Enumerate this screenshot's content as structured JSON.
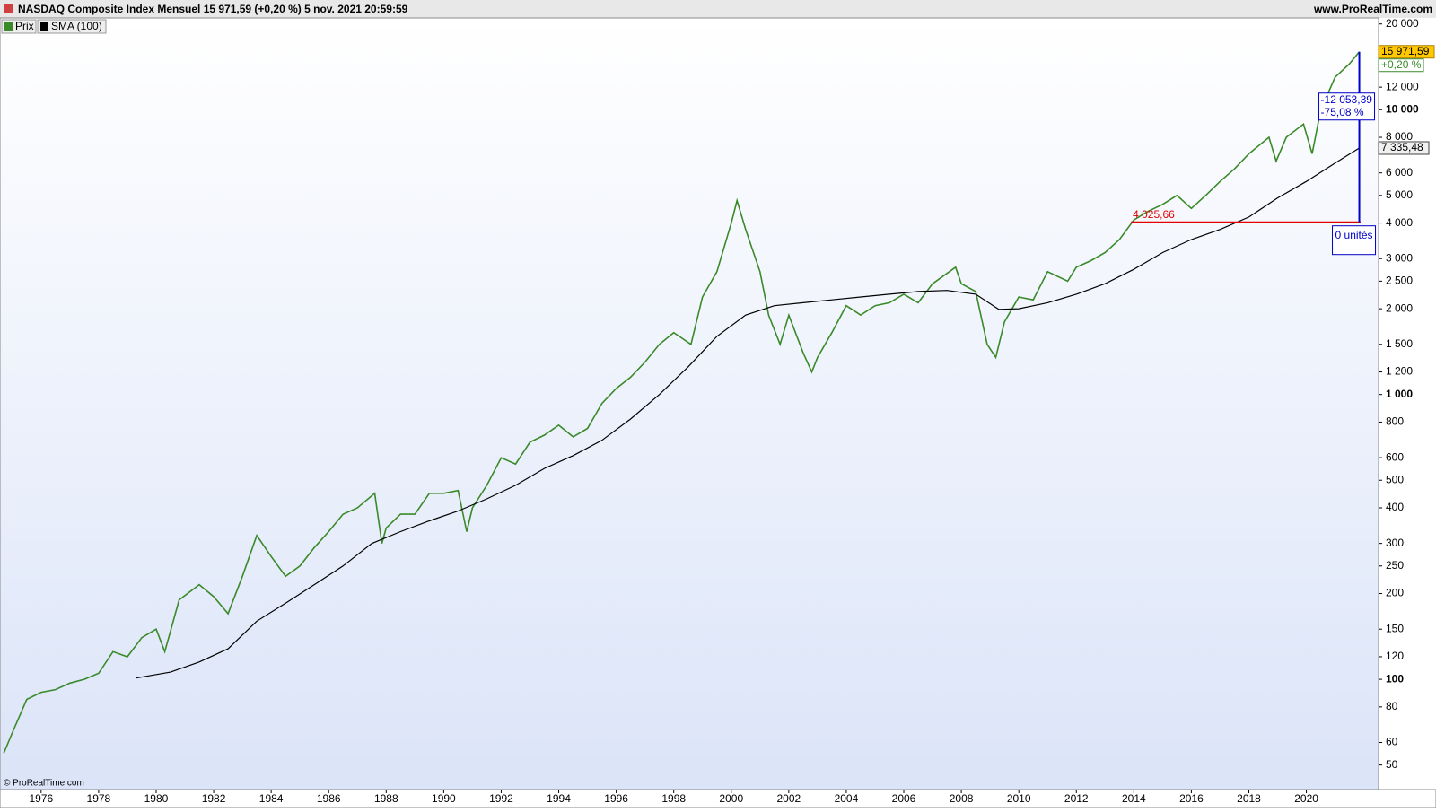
{
  "chart_data": {
    "type": "line",
    "title": "NASDAQ Composite Index Mensuel 15 971,59 (+0,20 %) 5 nov. 2021 20:59:59",
    "source": "www.ProRealTime.com",
    "copyright": "© ProRealTime.com",
    "log_scale": true,
    "xlim": [
      1974.57,
      2022.51
    ],
    "xticks": [
      1976,
      1978,
      1980,
      1982,
      1984,
      1986,
      1988,
      1990,
      1992,
      1994,
      1996,
      1998,
      2000,
      2002,
      2004,
      2006,
      2008,
      2010,
      2012,
      2014,
      2016,
      2018,
      2020
    ],
    "ylim": [
      41,
      21000
    ],
    "yticks": [
      {
        "value": 20000,
        "label": "20 000"
      },
      {
        "value": 12000,
        "label": "12 000"
      },
      {
        "value": 10000,
        "label": "10 000"
      },
      {
        "value": 8000,
        "label": "8 000"
      },
      {
        "value": 6000,
        "label": "6 000"
      },
      {
        "value": 5000,
        "label": "5 000"
      },
      {
        "value": 4000,
        "label": "4 000"
      },
      {
        "value": 3000,
        "label": "3 000"
      },
      {
        "value": 2500,
        "label": "2 500"
      },
      {
        "value": 2000,
        "label": "2 000"
      },
      {
        "value": 1500,
        "label": "1 500"
      },
      {
        "value": 1200,
        "label": "1 200"
      },
      {
        "value": 1000,
        "label": "1 000"
      },
      800,
      600,
      500,
      400,
      300,
      250,
      200,
      150,
      120,
      100,
      80,
      60,
      50
    ],
    "series": [
      {
        "name": "Prix",
        "color": "#3a8a2a",
        "x": [
          1974.7,
          1975.0,
          1975.5,
          1976.0,
          1976.5,
          1977.0,
          1977.5,
          1978.0,
          1978.5,
          1979.0,
          1979.5,
          1980.0,
          1980.3,
          1980.8,
          1981.5,
          1982.0,
          1982.5,
          1983.0,
          1983.5,
          1984.0,
          1984.5,
          1985.0,
          1985.5,
          1986.0,
          1986.5,
          1987.0,
          1987.6,
          1987.85,
          1988.0,
          1988.5,
          1989.0,
          1989.5,
          1990.0,
          1990.5,
          1990.8,
          1991.0,
          1991.5,
          1992.0,
          1992.5,
          1993.0,
          1993.5,
          1994.0,
          1994.5,
          1995.0,
          1995.5,
          1996.0,
          1996.5,
          1997.0,
          1997.5,
          1998.0,
          1998.6,
          1999.0,
          1999.5,
          2000.0,
          2000.2,
          2000.5,
          2001.0,
          2001.3,
          2001.7,
          2002.0,
          2002.5,
          2002.8,
          2003.0,
          2003.5,
          2004.0,
          2004.5,
          2005.0,
          2005.5,
          2006.0,
          2006.5,
          2007.0,
          2007.8,
          2008.0,
          2008.5,
          2008.9,
          2009.2,
          2009.5,
          2010.0,
          2010.5,
          2011.0,
          2011.7,
          2012.0,
          2012.5,
          2013.0,
          2013.5,
          2014.0,
          2014.5,
          2015.0,
          2015.5,
          2016.0,
          2016.5,
          2017.0,
          2017.5,
          2018.0,
          2018.7,
          2018.95,
          2019.3,
          2019.9,
          2020.2,
          2020.5,
          2021.0,
          2021.5,
          2021.84
        ],
        "values": [
          55,
          65,
          85,
          90,
          92,
          97,
          100,
          105,
          125,
          120,
          140,
          150,
          125,
          190,
          215,
          195,
          170,
          230,
          320,
          270,
          230,
          250,
          290,
          330,
          380,
          400,
          450,
          300,
          340,
          380,
          380,
          450,
          450,
          460,
          330,
          400,
          480,
          600,
          570,
          680,
          720,
          780,
          710,
          760,
          930,
          1050,
          1150,
          1300,
          1500,
          1650,
          1500,
          2200,
          2700,
          4000,
          4800,
          3800,
          2700,
          1900,
          1500,
          1900,
          1400,
          1200,
          1350,
          1650,
          2050,
          1900,
          2050,
          2100,
          2250,
          2100,
          2450,
          2800,
          2450,
          2300,
          1500,
          1350,
          1800,
          2200,
          2150,
          2700,
          2500,
          2800,
          2950,
          3150,
          3500,
          4100,
          4400,
          4650,
          5000,
          4500,
          5000,
          5600,
          6200,
          7000,
          8000,
          6600,
          8000,
          8900,
          7000,
          10000,
          13000,
          14500,
          15971.59
        ]
      },
      {
        "name": "SMA (100)",
        "color": "#000000",
        "x": [
          1979.3,
          1980.5,
          1981.5,
          1982.5,
          1983.5,
          1984.5,
          1985.5,
          1986.5,
          1987.5,
          1988.5,
          1989.5,
          1990.5,
          1991.5,
          1992.5,
          1993.5,
          1994.5,
          1995.5,
          1996.5,
          1997.5,
          1998.5,
          1999.5,
          2000.5,
          2001.5,
          2002.5,
          2003.5,
          2004.5,
          2005.5,
          2006.5,
          2007.5,
          2008.5,
          2009.3,
          2010.0,
          2011.0,
          2012.0,
          2013.0,
          2014.0,
          2015.0,
          2016.0,
          2017.0,
          2018.0,
          2019.0,
          2020.0,
          2021.0,
          2021.84
        ],
        "values": [
          101,
          106,
          115,
          128,
          160,
          185,
          215,
          250,
          300,
          330,
          360,
          390,
          430,
          480,
          550,
          610,
          690,
          820,
          1000,
          1250,
          1600,
          1900,
          2050,
          2100,
          2150,
          2200,
          2250,
          2300,
          2320,
          2250,
          1990,
          2000,
          2100,
          2250,
          2450,
          2750,
          3150,
          3500,
          3800,
          4200,
          4900,
          5600,
          6500,
          7335.48
        ]
      }
    ],
    "last_price": {
      "value": 15971.59,
      "label": "15 971,59"
    },
    "change_label": "+0,20 %",
    "sma_last": {
      "value": 7335.48,
      "label": "7 335,48"
    },
    "level_line": {
      "value": 4025.66,
      "label": "4 025,66",
      "color": "#e00000"
    },
    "measure": {
      "diff_label": "-12 053,39",
      "pct_label": "-75,08 %",
      "units_label": "0 unités",
      "color": "#0000c8"
    }
  }
}
